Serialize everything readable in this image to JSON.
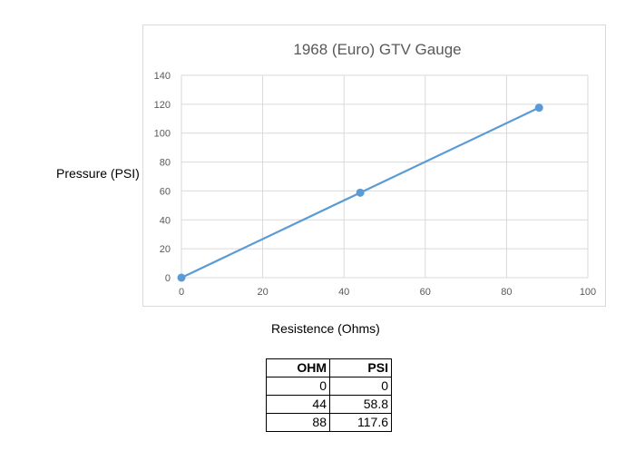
{
  "chart_data": {
    "type": "scatter",
    "title": "1968 (Euro) GTV Gauge",
    "xlabel": "Resistence (Ohms)",
    "ylabel": "Pressure (PSI)",
    "xlim": [
      0,
      100
    ],
    "ylim": [
      0,
      140
    ],
    "x_ticks": [
      0,
      20,
      40,
      60,
      80,
      100
    ],
    "y_ticks": [
      0,
      20,
      40,
      60,
      80,
      100,
      120,
      140
    ],
    "grid": true,
    "line_color": "#5b9bd5",
    "series": [
      {
        "x": [
          0,
          44,
          88
        ],
        "y": [
          0,
          58.8,
          117.6
        ]
      }
    ]
  },
  "table": {
    "headers": [
      "OHM",
      "PSI"
    ],
    "rows": [
      [
        "0",
        "0"
      ],
      [
        "44",
        "58.8"
      ],
      [
        "88",
        "117.6"
      ]
    ]
  }
}
